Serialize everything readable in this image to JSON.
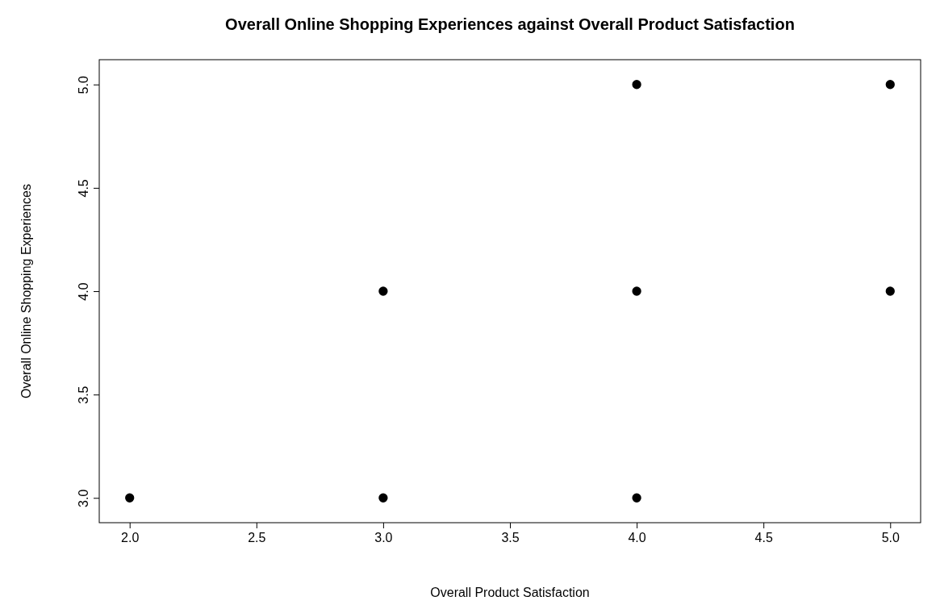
{
  "chart_data": {
    "type": "scatter",
    "title": "Overall Online Shopping Experiences against Overall Product Satisfaction",
    "xlabel": "Overall Product Satisfaction",
    "ylabel": "Overall Online Shopping Experiences",
    "series": [
      {
        "color": "#000000",
        "x": [
          2,
          3,
          3,
          4,
          4,
          4,
          5,
          5
        ],
        "values": [
          3,
          3,
          4,
          3,
          4,
          5,
          4,
          5
        ]
      }
    ],
    "xlim": [
      1.88,
      5.12
    ],
    "ylim": [
      2.88,
      5.12
    ],
    "xticks": [
      {
        "value": 2,
        "label": "2.0"
      },
      {
        "value": 2.5,
        "label": "2.5"
      },
      {
        "value": 3,
        "label": "3.0"
      },
      {
        "value": 3.5,
        "label": "3.5"
      },
      {
        "value": 4,
        "label": "4.0"
      },
      {
        "value": 4.5,
        "label": "4.5"
      },
      {
        "value": 5,
        "label": "5.0"
      }
    ],
    "yticks": [
      {
        "value": 3,
        "label": "3.0"
      },
      {
        "value": 3.5,
        "label": "3.5"
      },
      {
        "value": 4,
        "label": "4.0"
      },
      {
        "value": 4.5,
        "label": "4.5"
      },
      {
        "value": 5,
        "label": "5.0"
      }
    ],
    "grid": false,
    "marker": "circle"
  }
}
